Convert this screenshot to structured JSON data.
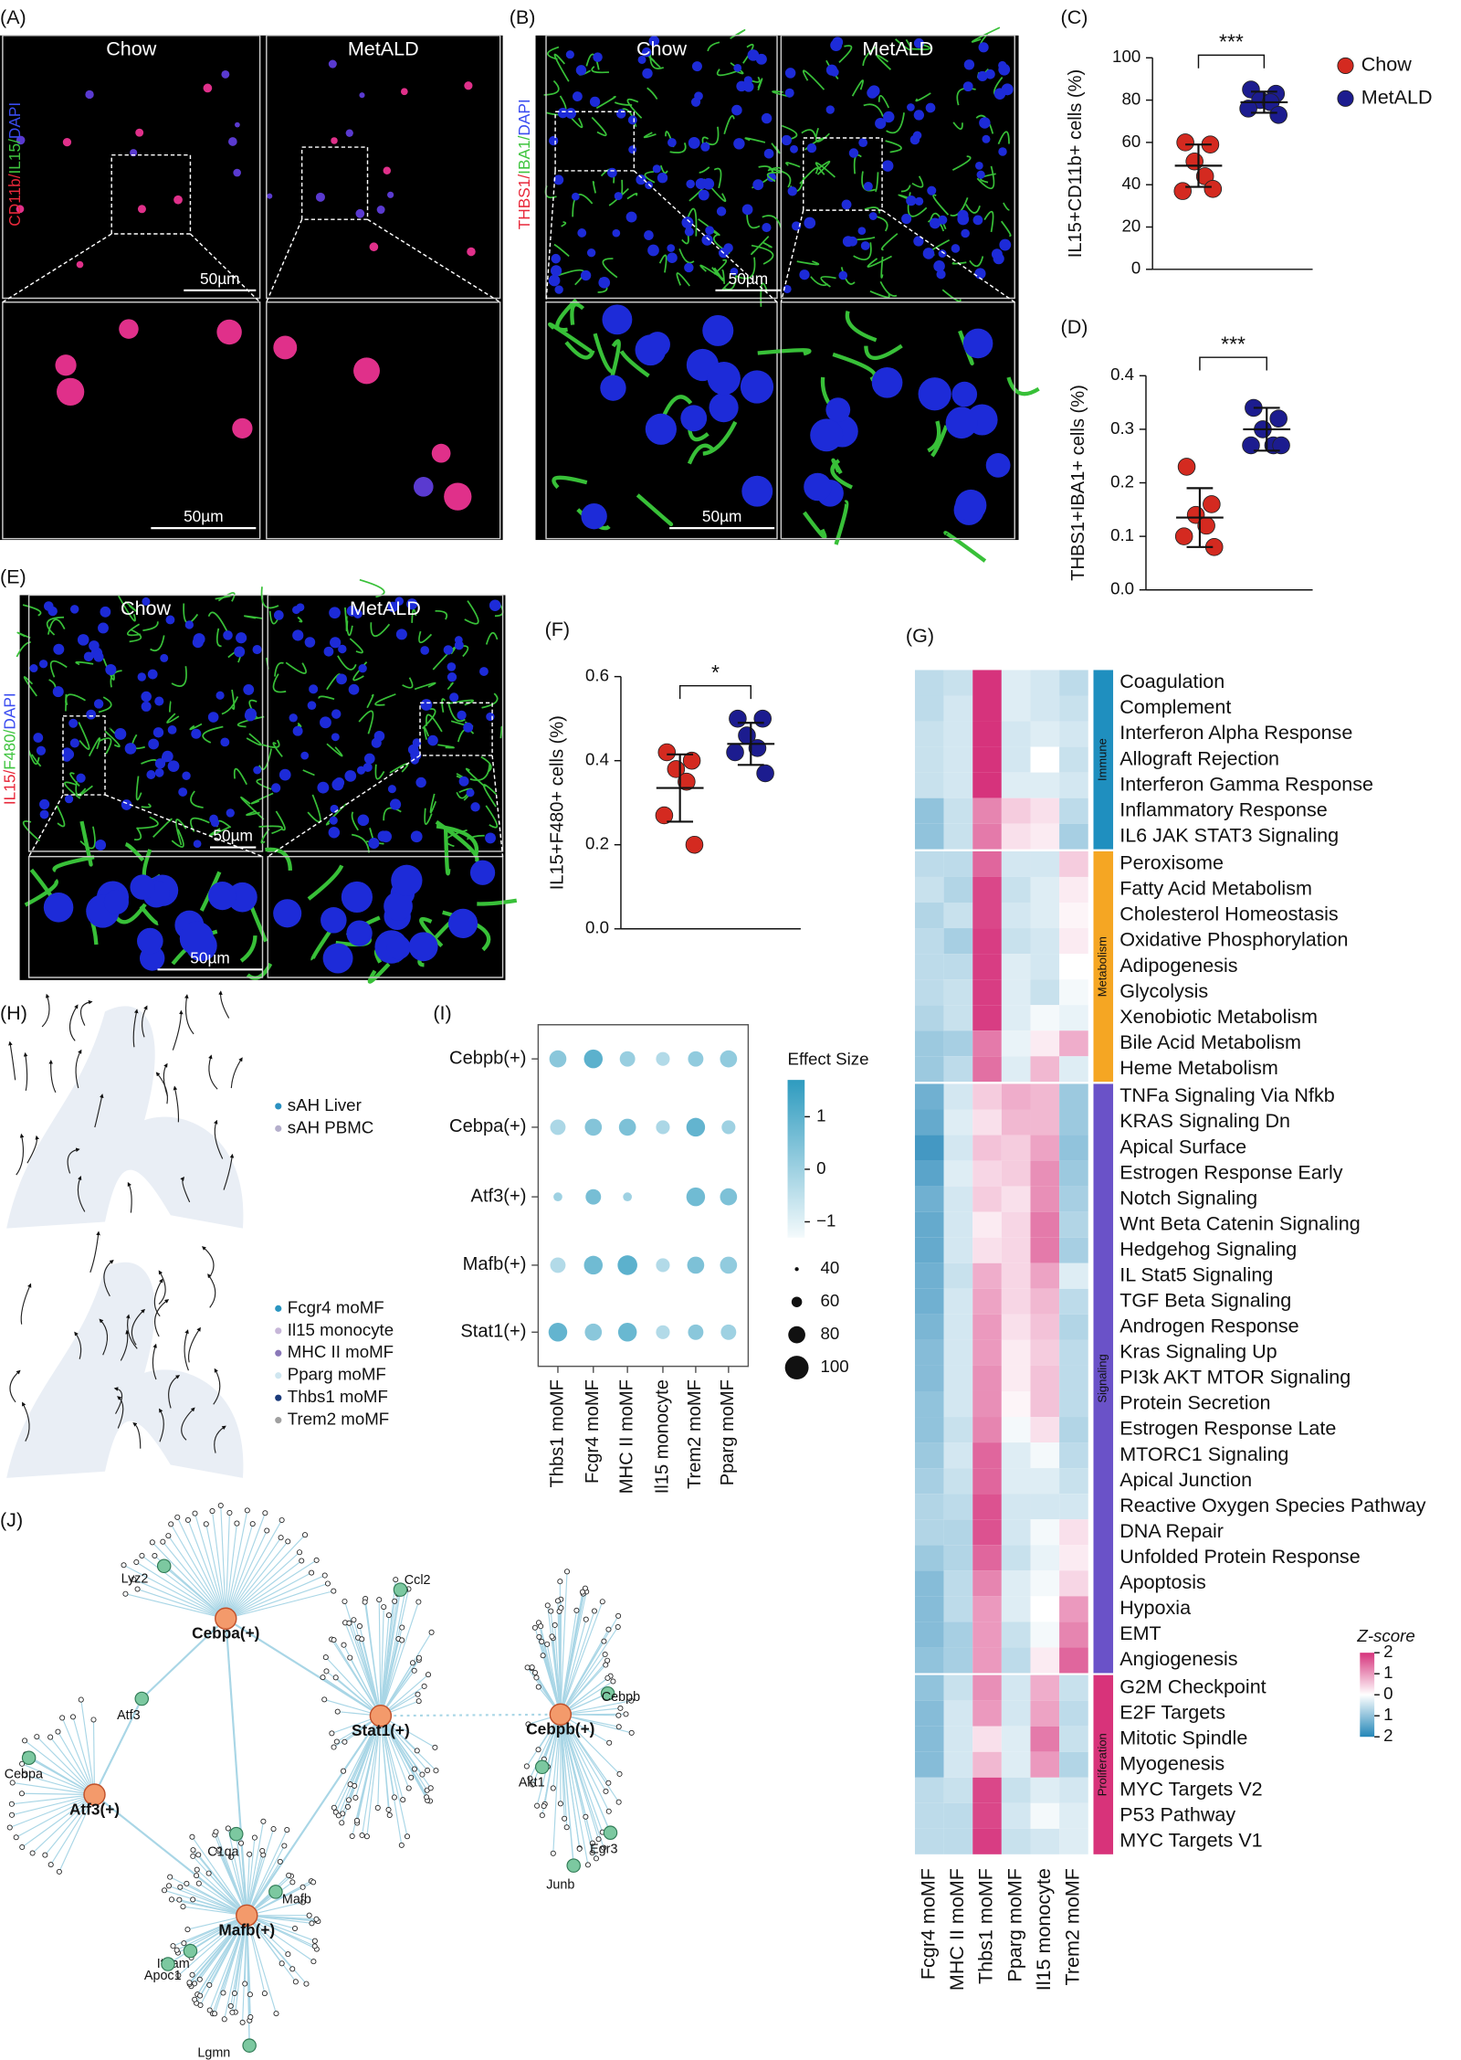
{
  "A": {
    "label": "(A)",
    "columns": [
      "Chow",
      "MetALD"
    ],
    "stain": [
      {
        "text": "CD11b/",
        "color": "#e8283a"
      },
      {
        "text": "IL15/",
        "color": "#3ec43e"
      },
      {
        "text": "DAPI",
        "color": "#3a4cf0"
      }
    ],
    "scale_bars": [
      "50µm",
      "50µm"
    ]
  },
  "B": {
    "label": "(B)",
    "columns": [
      "Chow",
      "MetALD"
    ],
    "stain": [
      {
        "text": "THBS1/",
        "color": "#e8283a"
      },
      {
        "text": "IBA1/",
        "color": "#3ec43e"
      },
      {
        "text": "DAPI",
        "color": "#3a4cf0"
      }
    ],
    "scale_bars": [
      "50µm",
      "50µm"
    ]
  },
  "C": {
    "label": "(C)",
    "type": "scatter",
    "ylabel": "IL15+CD11b+ cells (%)",
    "ylim": [
      0,
      100
    ],
    "yticks": [
      0,
      20,
      40,
      60,
      80,
      100
    ],
    "significance": "***",
    "groups": [
      {
        "name": "Chow",
        "color": "#d42a20",
        "values": [
          60,
          59,
          51,
          44,
          37,
          38
        ],
        "mean": 49,
        "sd": 10
      },
      {
        "name": "MetALD",
        "color": "#1c1c8f",
        "values": [
          85,
          83,
          80,
          79,
          76,
          73
        ],
        "mean": 79,
        "sd": 5
      }
    ]
  },
  "D": {
    "label": "(D)",
    "type": "scatter",
    "ylabel": "THBS1+IBA1+ cells (%)",
    "ylim": [
      0,
      0.4
    ],
    "yticks": [
      {
        "value": 0,
        "label": "0.0"
      },
      0.1,
      0.2,
      0.3,
      0.4
    ],
    "significance": "***",
    "groups": [
      {
        "name": "Chow",
        "color": "#d42a20",
        "values": [
          0.23,
          0.16,
          0.14,
          0.12,
          0.1,
          0.08
        ],
        "mean": 0.135,
        "sd": 0.055
      },
      {
        "name": "MetALD",
        "color": "#1c1c8f",
        "values": [
          0.34,
          0.32,
          0.3,
          0.27,
          0.27,
          0.27
        ],
        "mean": 0.3,
        "sd": 0.04
      }
    ]
  },
  "E": {
    "label": "(E)",
    "columns": [
      "Chow",
      "MetALD"
    ],
    "stain": [
      {
        "text": "IL15/",
        "color": "#e8283a"
      },
      {
        "text": "F480/",
        "color": "#3ec43e"
      },
      {
        "text": "DAPI",
        "color": "#3a4cf0"
      }
    ],
    "scale_bars": [
      "50µm",
      "50µm"
    ]
  },
  "F": {
    "label": "(F)",
    "type": "scatter",
    "ylabel": "IL15+F480+ cells (%)",
    "ylim": [
      0,
      0.6
    ],
    "yticks": [
      {
        "value": 0,
        "label": "0.0"
      },
      0.2,
      0.4,
      0.6
    ],
    "significance": "*",
    "groups": [
      {
        "name": "Chow",
        "color": "#d42a20",
        "values": [
          0.42,
          0.4,
          0.38,
          0.35,
          0.27,
          0.2
        ],
        "mean": 0.335,
        "sd": 0.08
      },
      {
        "name": "MetALD",
        "color": "#1c1c8f",
        "values": [
          0.5,
          0.5,
          0.46,
          0.43,
          0.42,
          0.37
        ],
        "mean": 0.44,
        "sd": 0.05
      }
    ]
  },
  "G": {
    "label": "(G)",
    "type": "heatmap",
    "columns": [
      "Fcgr4 moMF",
      "MHC II moMF",
      "Thbs1 moMF",
      "Pparg moMF",
      "Il15 monocyte",
      "Trem2 moMF"
    ],
    "colorbar_title": "Z-score",
    "zlim": [
      -2,
      2
    ],
    "zticks": [
      2,
      1,
      0,
      {
        "value": -1,
        "label": "1"
      },
      {
        "value": -2,
        "label": "2"
      }
    ],
    "groups": [
      {
        "name": "Immune",
        "color": "#1f8fbf",
        "rows": [
          {
            "name": "Coagulation",
            "values": [
              -0.6,
              -0.5,
              2,
              -0.3,
              -0.4,
              -0.6
            ]
          },
          {
            "name": "Complement",
            "values": [
              -0.6,
              -0.4,
              2,
              -0.3,
              -0.4,
              -0.5
            ]
          },
          {
            "name": "Interferon Alpha Response",
            "values": [
              -0.5,
              -0.4,
              2,
              -0.4,
              -0.3,
              -0.4
            ]
          },
          {
            "name": "Allograft Rejection",
            "values": [
              -0.5,
              -0.4,
              2,
              -0.4,
              0,
              -0.5
            ]
          },
          {
            "name": "Interferon Gamma Response",
            "values": [
              -0.5,
              -0.4,
              2,
              -0.3,
              -0.3,
              -0.4
            ]
          },
          {
            "name": "Inflammatory Response",
            "values": [
              -1,
              -0.5,
              1.2,
              0.5,
              0.3,
              -0.6
            ]
          },
          {
            "name": "IL6 JAK STAT3 Signaling",
            "values": [
              -1,
              -0.5,
              1.3,
              0.3,
              0.2,
              -0.8
            ]
          }
        ]
      },
      {
        "name": "Metabolism",
        "color": "#f5a623",
        "rows": [
          {
            "name": "Peroxisome",
            "values": [
              -0.6,
              -0.6,
              1.5,
              -0.4,
              -0.4,
              0.5
            ]
          },
          {
            "name": "Fatty Acid Metabolism",
            "values": [
              -0.5,
              -0.7,
              1.8,
              -0.5,
              -0.3,
              0.2
            ]
          },
          {
            "name": "Cholesterol Homeostasis",
            "values": [
              -0.7,
              -0.5,
              1.8,
              -0.4,
              -0.3,
              0.1
            ]
          },
          {
            "name": "Oxidative Phosphorylation",
            "values": [
              -0.6,
              -0.8,
              1.9,
              -0.5,
              -0.4,
              0.2
            ]
          },
          {
            "name": "Adipogenesis",
            "values": [
              -0.6,
              -0.6,
              1.9,
              -0.3,
              -0.4,
              0
            ]
          },
          {
            "name": "Glycolysis",
            "values": [
              -0.6,
              -0.5,
              1.9,
              -0.3,
              -0.5,
              -0.1
            ]
          },
          {
            "name": "Xenobiotic Metabolism",
            "values": [
              -0.7,
              -0.5,
              1.9,
              -0.3,
              -0.1,
              -0.2
            ]
          },
          {
            "name": "Bile Acid Metabolism",
            "values": [
              -0.9,
              -0.8,
              1.3,
              -0.2,
              0.2,
              0.8
            ]
          },
          {
            "name": "Heme Metabolism",
            "values": [
              -0.9,
              -0.6,
              1.4,
              -0.3,
              0.7,
              -0.3
            ]
          }
        ]
      },
      {
        "name": "Signaling",
        "color": "#6a52c8",
        "rows": [
          {
            "name": "TNFa Signaling Via Nfkb",
            "values": [
              -1.3,
              -0.4,
              0.5,
              0.8,
              0.7,
              -0.9
            ]
          },
          {
            "name": "KRAS Signaling Dn",
            "values": [
              -1.4,
              -0.3,
              0.3,
              0.7,
              0.7,
              -0.9
            ]
          },
          {
            "name": "Apical Surface",
            "values": [
              -1.7,
              -0.4,
              0.6,
              0.5,
              0.9,
              -1
            ]
          },
          {
            "name": "Estrogen Response Early",
            "values": [
              -1.5,
              -0.3,
              0.4,
              0.5,
              1.1,
              -0.9
            ]
          },
          {
            "name": "Notch Signaling",
            "values": [
              -1.3,
              -0.4,
              0.5,
              0.3,
              1.1,
              -0.8
            ]
          },
          {
            "name": "Wnt Beta Catenin Signaling",
            "values": [
              -1.4,
              -0.4,
              0.2,
              0.4,
              1.3,
              -0.7
            ]
          },
          {
            "name": "Hedgehog Signaling",
            "values": [
              -1.4,
              -0.4,
              0.3,
              0.4,
              1.3,
              -0.8
            ]
          },
          {
            "name": "IL Stat5 Signaling",
            "values": [
              -1.3,
              -0.5,
              0.8,
              0.4,
              0.9,
              -0.3
            ]
          },
          {
            "name": "TGF Beta Signaling",
            "values": [
              -1.3,
              -0.4,
              0.9,
              0.4,
              0.7,
              -0.6
            ]
          },
          {
            "name": "Androgen Response",
            "values": [
              -1.2,
              -0.4,
              1,
              0.3,
              0.6,
              -0.7
            ]
          },
          {
            "name": "Kras Signaling Up",
            "values": [
              -1.1,
              -0.4,
              1,
              0.2,
              0.5,
              -0.6
            ]
          },
          {
            "name": "PI3k AKT MTOR Signaling",
            "values": [
              -1.1,
              -0.4,
              1.1,
              0.2,
              0.6,
              -0.6
            ]
          },
          {
            "name": "Protein Secretion",
            "values": [
              -1,
              -0.4,
              1.1,
              0.1,
              0.6,
              -0.6
            ]
          },
          {
            "name": "Estrogen Response Late",
            "values": [
              -1,
              -0.5,
              1.2,
              -0.1,
              0.3,
              -0.7
            ]
          },
          {
            "name": "MTORC1 Signaling",
            "values": [
              -0.9,
              -0.4,
              1.5,
              -0.3,
              -0.1,
              -0.6
            ]
          },
          {
            "name": "Apical Junction",
            "values": [
              -0.8,
              -0.5,
              1.5,
              -0.3,
              -0.3,
              -0.5
            ]
          },
          {
            "name": "Reactive Oxygen Species Pathway",
            "values": [
              -0.7,
              -0.6,
              1.7,
              -0.4,
              -0.4,
              -0.4
            ]
          },
          {
            "name": "DNA Repair",
            "values": [
              -0.7,
              -0.7,
              1.7,
              -0.4,
              -0.1,
              0.3
            ]
          },
          {
            "name": "Unfolded Protein Response",
            "values": [
              -0.9,
              -0.7,
              1.5,
              -0.5,
              -0.2,
              0.2
            ]
          },
          {
            "name": "Apoptosis",
            "values": [
              -1.1,
              -0.6,
              1.2,
              -0.3,
              -0.1,
              0.4
            ]
          },
          {
            "name": "Hypoxia",
            "values": [
              -1.1,
              -0.6,
              1,
              -0.3,
              0,
              1
            ]
          },
          {
            "name": "EMT",
            "values": [
              -1.1,
              -0.8,
              1,
              -0.5,
              -0.1,
              1.2
            ]
          },
          {
            "name": "Angiogenesis",
            "values": [
              -1,
              -0.8,
              1,
              -0.6,
              0.2,
              1.5
            ]
          }
        ]
      },
      {
        "name": "Proliferation",
        "color": "#d8337a",
        "rows": [
          {
            "name": "G2M Checkpoint",
            "values": [
              -1,
              -0.5,
              1.1,
              -0.4,
              0.8,
              -0.5
            ]
          },
          {
            "name": "E2F Targets",
            "values": [
              -1.1,
              -0.4,
              1,
              -0.4,
              0.9,
              -0.6
            ]
          },
          {
            "name": "Mitotic Spindle",
            "values": [
              -1.1,
              -0.4,
              0.3,
              -0.3,
              1.3,
              -0.5
            ]
          },
          {
            "name": "Myogenesis",
            "values": [
              -1.1,
              -0.4,
              0.7,
              -0.3,
              1,
              -0.7
            ]
          },
          {
            "name": "MYC Targets V2",
            "values": [
              -0.6,
              -0.5,
              1.8,
              -0.5,
              -0.3,
              -0.4
            ]
          },
          {
            "name": "P53 Pathway",
            "values": [
              -0.6,
              -0.6,
              1.8,
              -0.4,
              -0.1,
              -0.3
            ]
          },
          {
            "name": "MYC Targets V1",
            "values": [
              -0.6,
              -0.6,
              1.9,
              -0.5,
              -0.4,
              -0.3
            ]
          }
        ]
      }
    ]
  },
  "H": {
    "label": "(H)",
    "legend_top": [
      {
        "name": "sAH Liver",
        "color": "#2a90c0"
      },
      {
        "name": "sAH PBMC",
        "color": "#b4aecb"
      }
    ],
    "legend_bottom": [
      {
        "name": "Fcgr4 moMF",
        "color": "#2a95c0"
      },
      {
        "name": "Il15 monocyte",
        "color": "#c6b6d8"
      },
      {
        "name": "MHC II moMF",
        "color": "#8a78b8"
      },
      {
        "name": "Pparg moMF",
        "color": "#cfe6f0"
      },
      {
        "name": "Thbs1 moMF",
        "color": "#1a3a7a"
      },
      {
        "name": "Trem2 moMF",
        "color": "#a0a0a0"
      }
    ]
  },
  "I": {
    "label": "(I)",
    "type": "dotplot",
    "rows": [
      "Cebpb(+)",
      "Cebpa(+)",
      "Atf3(+)",
      "Mafb(+)",
      "Stat1(+)"
    ],
    "columns": [
      "Thbs1 moMF",
      "Fcgr4 moMF",
      "MHC II moMF",
      "Il15 monocyte",
      "Trem2 moMF",
      "Pparg moMF"
    ],
    "effect": [
      [
        0.3,
        1,
        0.1,
        -0.3,
        0.2,
        0.2
      ],
      [
        -0.2,
        0.4,
        0.5,
        -0.2,
        0.9,
        0
      ],
      [
        0,
        0.6,
        0,
        null,
        0.7,
        0.5
      ],
      [
        -0.3,
        0.7,
        1,
        -0.3,
        0.5,
        0.2
      ],
      [
        0.9,
        0.3,
        0.8,
        -0.3,
        0.3,
        0
      ]
    ],
    "percent": [
      [
        80,
        85,
        75,
        70,
        75,
        80
      ],
      [
        75,
        80,
        80,
        70,
        85,
        70
      ],
      [
        55,
        75,
        55,
        null,
        85,
        80
      ],
      [
        75,
        85,
        88,
        70,
        80,
        80
      ],
      [
        85,
        80,
        85,
        70,
        75,
        75
      ]
    ],
    "effect_title": "Effect Size",
    "effect_lim": [
      -1.3,
      1.7
    ],
    "effect_ticks": [
      1,
      0,
      {
        "value": -1,
        "label": "−1"
      }
    ],
    "size_ticks": [
      40,
      60,
      80,
      100
    ]
  },
  "J": {
    "label": "(J)",
    "hubs": [
      "Cebpa(+)",
      "Stat1(+)",
      "Cebpb(+)",
      "Atf3(+)",
      "Mafb(+)"
    ],
    "genes": [
      "Lyz2",
      "Ccl2",
      "Atf3",
      "Cebpb",
      "Cebpa",
      "Akt1",
      "Egr3",
      "Junb",
      "C1qa",
      "Mafb",
      "Itgam",
      "Apoc1",
      "Lgmn"
    ]
  }
}
